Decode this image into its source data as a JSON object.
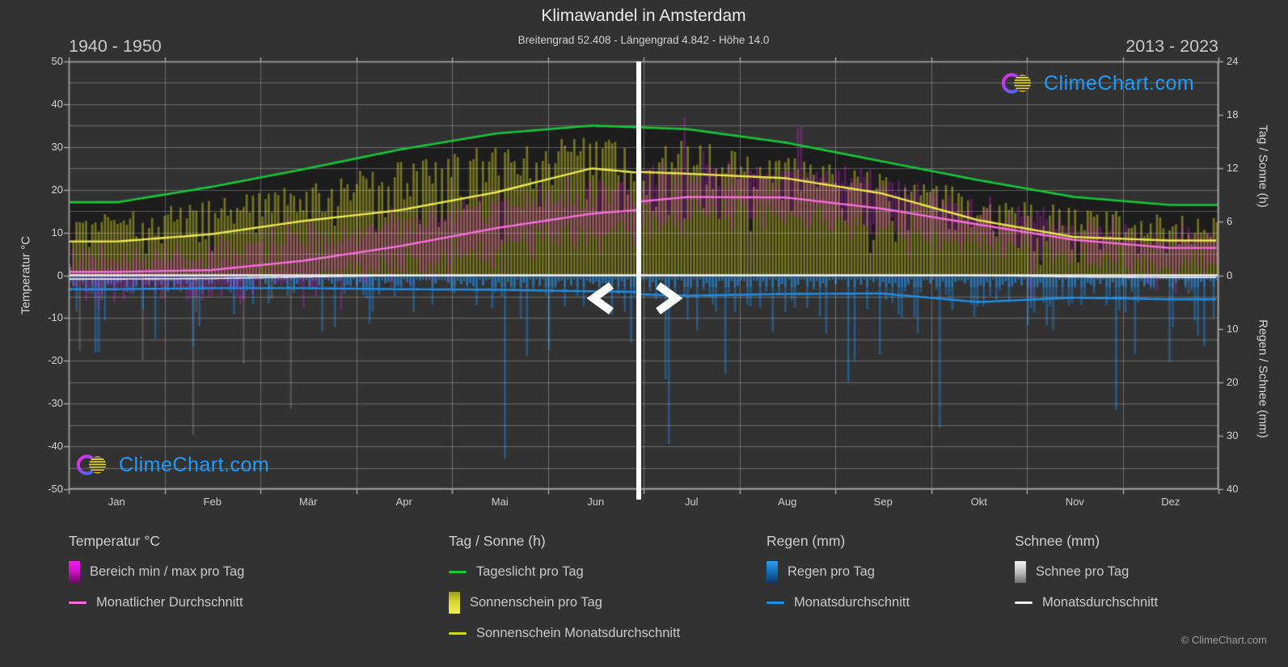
{
  "header": {
    "title": "Klimawandel in Amsterdam",
    "subtitle": "Breitengrad 52.408 - Längengrad 4.842 - Höhe 14.0"
  },
  "periods": {
    "left_label": "1940 - 1950",
    "right_label": "2013 - 2023"
  },
  "branding": {
    "logo_text": "ClimeChart.com",
    "copyright": "© ClimeChart.com"
  },
  "axes": {
    "left": {
      "title": "Temperatur °C",
      "ticks": [
        50,
        40,
        30,
        20,
        10,
        0,
        -10,
        -20,
        -30,
        -40,
        -50
      ]
    },
    "right_top": {
      "title": "Tag / Sonne (h)",
      "ticks": [
        24,
        18,
        12,
        6,
        0
      ]
    },
    "right_bottom": {
      "title": "Regen / Schnee (mm)",
      "ticks": [
        10,
        20,
        30,
        40
      ]
    },
    "x": {
      "months": [
        "Jan",
        "Feb",
        "Mär",
        "Apr",
        "Mai",
        "Jun",
        "Jul",
        "Aug",
        "Sep",
        "Okt",
        "Nov",
        "Dez"
      ]
    }
  },
  "legend": {
    "groups": [
      {
        "title": "Temperatur °C",
        "items": [
          {
            "label": "Bereich min / max pro Tag"
          },
          {
            "label": "Monatlicher Durchschnitt"
          }
        ]
      },
      {
        "title": "Tag / Sonne (h)",
        "items": [
          {
            "label": "Tageslicht pro Tag"
          },
          {
            "label": "Sonnenschein pro Tag"
          },
          {
            "label": "Sonnenschein Monatsdurchschnitt"
          }
        ]
      },
      {
        "title": "Regen (mm)",
        "items": [
          {
            "label": "Regen pro Tag"
          },
          {
            "label": "Monatsdurchschnitt"
          }
        ]
      },
      {
        "title": "Schnee (mm)",
        "items": [
          {
            "label": "Schnee pro Tag"
          },
          {
            "label": "Monatsdurchschnitt"
          }
        ]
      }
    ]
  },
  "chart_data": {
    "type": "line",
    "subtype": "climate-comparison-slider",
    "title": "Klimawandel in Amsterdam",
    "x_months": [
      "Jan",
      "Feb",
      "Mär",
      "Apr",
      "Mai",
      "Jun",
      "Jul",
      "Aug",
      "Sep",
      "Okt",
      "Nov",
      "Dez"
    ],
    "ylim_temp_c": [
      -50,
      50
    ],
    "ylim_sun_h": [
      0,
      24
    ],
    "ylim_precip_mm": [
      0,
      40
    ],
    "grid": true,
    "legend_position": "bottom",
    "divider_day_of_year": 181,
    "daylight_h": [
      8.2,
      9.9,
      11.9,
      14.1,
      15.9,
      16.8,
      16.4,
      14.9,
      12.8,
      10.7,
      8.8,
      7.9
    ],
    "periods": [
      {
        "label": "1940 - 1950",
        "side": "left",
        "series": {
          "temp_avg_c": [
            0.8,
            1.2,
            3.4,
            6.8,
            11.0,
            14.4,
            16.2,
            16.0,
            13.4,
            9.2,
            4.6,
            2.0
          ],
          "temp_min_c": [
            -3.5,
            -3.2,
            -0.8,
            1.8,
            6.0,
            9.8,
            11.8,
            11.5,
            9.2,
            5.5,
            1.5,
            -1.5
          ],
          "temp_max_c": [
            4.2,
            5.0,
            8.0,
            12.0,
            16.5,
            19.8,
            21.5,
            21.2,
            18.5,
            13.8,
            8.5,
            5.5
          ],
          "sunshine_h": [
            3.8,
            4.6,
            6.1,
            7.3,
            9.3,
            12.0,
            11.0,
            10.2,
            8.0,
            5.6,
            3.9,
            3.3
          ],
          "rain_mm": [
            2.6,
            2.4,
            2.4,
            2.6,
            2.7,
            3.0,
            3.2,
            3.1,
            3.0,
            3.2,
            3.3,
            3.1
          ],
          "snow_mm": [
            0.7,
            0.6,
            0.3,
            0.05,
            0,
            0,
            0,
            0,
            0,
            0,
            0.2,
            0.5
          ]
        }
      },
      {
        "label": "2013 - 2023",
        "side": "right",
        "series": {
          "temp_avg_c": [
            3.8,
            4.2,
            6.3,
            9.5,
            13.2,
            16.2,
            18.3,
            18.2,
            15.6,
            11.9,
            8.3,
            6.4
          ],
          "temp_min_c": [
            0.8,
            0.8,
            2.5,
            4.8,
            8.5,
            11.8,
            13.8,
            13.6,
            11.0,
            7.8,
            4.5,
            2.8
          ],
          "temp_max_c": [
            7.0,
            7.5,
            10.5,
            14.5,
            18.5,
            21.8,
            24.0,
            23.8,
            20.5,
            15.5,
            10.8,
            8.5
          ],
          "sunshine_h": [
            4.2,
            5.2,
            6.8,
            8.6,
            10.6,
            11.8,
            11.4,
            10.9,
            9.2,
            6.2,
            4.3,
            3.9
          ],
          "rain_mm": [
            3.4,
            2.9,
            2.6,
            2.2,
            2.6,
            3.3,
            3.8,
            3.5,
            3.4,
            5.0,
            4.2,
            4.5
          ],
          "snow_mm": [
            0.4,
            0.4,
            0.15,
            0,
            0,
            0,
            0,
            0,
            0,
            0,
            0.3,
            0.4
          ]
        }
      }
    ],
    "colors": {
      "background": "#323232",
      "grid": "#808080",
      "zero_line": "#f0f0f0",
      "daylight_line": "#15c838",
      "sunshine_line": "#ece84e",
      "temp_line": "#f56fdc",
      "rain_line": "#1f8fe8",
      "snow_line": "#ededed",
      "temp_fill": "#eb19eb",
      "sunshine_fill": "#d2d228",
      "rain_fill": "#1e7dd2",
      "snow_fill": "#ebebeb",
      "logo_blue": "#1e9bff"
    }
  }
}
